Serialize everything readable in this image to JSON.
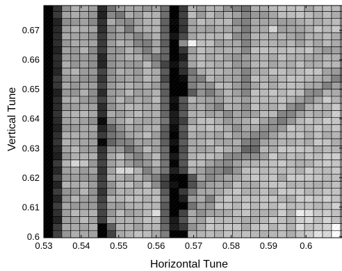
{
  "chart_data": {
    "type": "heatmap",
    "title": "",
    "xlabel": "Horizontal Tune",
    "ylabel": "Vertical Tune",
    "xlim": [
      0.53,
      0.6096
    ],
    "ylim": [
      0.5996,
      0.6784
    ],
    "x_ticks": [
      {
        "value": 0.53,
        "label": "0.53"
      },
      {
        "value": 0.54,
        "label": "0.54"
      },
      {
        "value": 0.55,
        "label": "0.55"
      },
      {
        "value": 0.56,
        "label": "0.56"
      },
      {
        "value": 0.57,
        "label": "0.57"
      },
      {
        "value": 0.58,
        "label": "0.58"
      },
      {
        "value": 0.59,
        "label": "0.59"
      },
      {
        "value": 0.6,
        "label": "0.6"
      }
    ],
    "y_ticks": [
      {
        "value": 0.6,
        "label": "0.6"
      },
      {
        "value": 0.61,
        "label": "0.61"
      },
      {
        "value": 0.62,
        "label": "0.62"
      },
      {
        "value": 0.63,
        "label": "0.63"
      },
      {
        "value": 0.64,
        "label": "0.64"
      },
      {
        "value": 0.65,
        "label": "0.65"
      },
      {
        "value": 0.66,
        "label": "0.66"
      },
      {
        "value": 0.67,
        "label": "0.67"
      }
    ],
    "grid_step": 0.0024,
    "x_cells": 34,
    "y_cells": 34,
    "colormap": "gray",
    "color_low": "#000000",
    "color_high": "#ffffff",
    "value_range": [
      0,
      1
    ],
    "grid_line_color": "#000000",
    "features": {
      "columns": [
        {
          "x_center": 0.5306,
          "halfwidth": 0.0012,
          "strength": 0.84,
          "ymin": 0.5996,
          "ymax": 0.6784
        },
        {
          "x_center": 0.5328,
          "halfwidth": 0.0015,
          "strength": 0.63,
          "ymin": 0.5996,
          "ymax": 0.6784
        },
        {
          "x_center": 0.5456,
          "halfwidth": 0.0012,
          "strength": 0.45,
          "ymin": 0.5996,
          "ymax": 0.6784
        },
        {
          "x_center": 0.5642,
          "halfwidth": 0.0015,
          "strength": 0.62,
          "ymin": 0.5996,
          "ymax": 0.6784
        },
        {
          "x_center": 0.5666,
          "halfwidth": 0.0012,
          "strength": 0.46,
          "ymin": 0.5996,
          "ymax": 0.6784
        },
        {
          "x_center": 0.5835,
          "halfwidth": 0.0015,
          "strength": 0.18,
          "ymin": 0.64,
          "ymax": 0.6784
        }
      ],
      "bands": [
        {
          "x1": 0.5662,
          "y1": 0.612,
          "x2": 0.609,
          "y2": 0.655,
          "halfwidth": 0.0036,
          "strength": 0.22
        },
        {
          "x1": 0.566,
          "y1": 0.662,
          "x2": 0.587,
          "y2": 0.628,
          "halfwidth": 0.003,
          "strength": 0.16
        },
        {
          "x1": 0.545,
          "y1": 0.64,
          "x2": 0.564,
          "y2": 0.615,
          "halfwidth": 0.0028,
          "strength": 0.2
        },
        {
          "x1": 0.548,
          "y1": 0.6784,
          "x2": 0.566,
          "y2": 0.652,
          "halfwidth": 0.003,
          "strength": 0.14
        },
        {
          "x1": 0.567,
          "y1": 0.5996,
          "x2": 0.58,
          "y2": 0.622,
          "halfwidth": 0.0028,
          "strength": 0.15
        },
        {
          "x1": 0.58,
          "y1": 0.6784,
          "x2": 0.6096,
          "y2": 0.662,
          "halfwidth": 0.0035,
          "strength": 0.1
        }
      ],
      "spots": [
        {
          "x": 0.5465,
          "y": 0.601,
          "delta": -0.35
        },
        {
          "x": 0.5465,
          "y": 0.6035,
          "delta": -0.28
        },
        {
          "x": 0.5465,
          "y": 0.632,
          "delta": -0.16
        },
        {
          "x": 0.5658,
          "y": 0.601,
          "delta": -0.35
        },
        {
          "x": 0.5682,
          "y": 0.6202,
          "delta": -0.35
        },
        {
          "x": 0.5682,
          "y": 0.6178,
          "delta": -0.3
        },
        {
          "x": 0.5682,
          "y": 0.6106,
          "delta": -0.22
        },
        {
          "x": 0.5682,
          "y": 0.649,
          "delta": -0.3
        },
        {
          "x": 0.5682,
          "y": 0.6514,
          "delta": -0.22
        },
        {
          "x": 0.5682,
          "y": 0.6538,
          "delta": -0.16
        },
        {
          "x": 0.5682,
          "y": 0.6658,
          "delta": 0.28
        },
        {
          "x": 0.6075,
          "y": 0.6008,
          "delta": 0.7
        },
        {
          "x": 0.6075,
          "y": 0.6032,
          "delta": 0.4
        },
        {
          "x": 0.5515,
          "y": 0.6226,
          "delta": 0.18
        },
        {
          "x": 0.5595,
          "y": 0.6082,
          "delta": 0.15
        },
        {
          "x": 0.5395,
          "y": 0.625,
          "delta": 0.14
        },
        {
          "x": 0.5915,
          "y": 0.6706,
          "delta": 0.12
        },
        {
          "x": 0.5995,
          "y": 0.6082,
          "delta": 0.14
        }
      ]
    }
  }
}
